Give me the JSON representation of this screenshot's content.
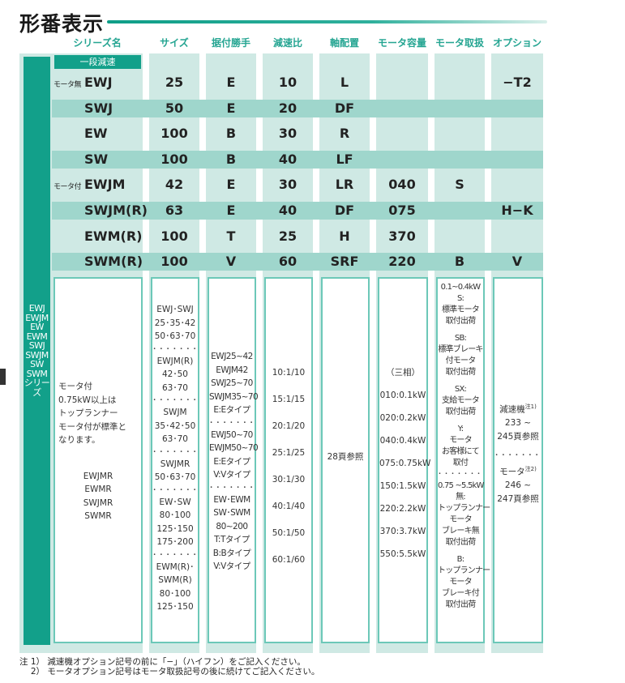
{
  "title": "形番表示",
  "headers": [
    "シリーズ名",
    "サイズ",
    "据付勝手",
    "減速比",
    "軸配置",
    "モータ容量",
    "モータ取扱",
    "オプション"
  ],
  "stage_badge": "一段減速",
  "side_label": [
    "EWJ",
    "EWJM",
    "EW",
    "EWM",
    "SWJ",
    "SWJM",
    "SW",
    "SWM",
    "シリーズ"
  ],
  "rows": [
    {
      "prefix": "モータ無",
      "series": "EWJ",
      "size": "25",
      "mount": "E",
      "ratio": "10",
      "axis": "L",
      "motor": "",
      "handling": "",
      "option": "−T2"
    },
    {
      "prefix": "",
      "series": "SWJ",
      "size": "50",
      "mount": "E",
      "ratio": "20",
      "axis": "DF",
      "motor": "",
      "handling": "",
      "option": ""
    },
    {
      "prefix": "",
      "series": "EW",
      "size": "100",
      "mount": "B",
      "ratio": "30",
      "axis": "R",
      "motor": "",
      "handling": "",
      "option": ""
    },
    {
      "prefix": "",
      "series": "SW",
      "size": "100",
      "mount": "B",
      "ratio": "40",
      "axis": "LF",
      "motor": "",
      "handling": "",
      "option": ""
    },
    {
      "prefix": "モータ付",
      "series": "EWJM",
      "size": "42",
      "mount": "E",
      "ratio": "30",
      "axis": "LR",
      "motor": "040",
      "handling": "S",
      "option": ""
    },
    {
      "prefix": "",
      "series": "SWJM(R)",
      "size": "63",
      "mount": "E",
      "ratio": "40",
      "axis": "DF",
      "motor": "075",
      "handling": "",
      "option": "H−K"
    },
    {
      "prefix": "",
      "series": "EWM(R)",
      "size": "100",
      "mount": "T",
      "ratio": "25",
      "axis": "H",
      "motor": "370",
      "handling": "",
      "option": ""
    },
    {
      "prefix": "",
      "series": "SWM(R)",
      "size": "100",
      "mount": "V",
      "ratio": "60",
      "axis": "SRF",
      "motor": "220",
      "handling": "B",
      "option": "V"
    }
  ],
  "details": {
    "series": {
      "note": [
        "モータ付",
        "0.75kW以上は",
        "トップランナー",
        "モータ付が標準と",
        "なります。"
      ],
      "models": [
        "EWJMR",
        "EWMR",
        "SWJMR",
        "SWMR"
      ]
    },
    "size": [
      "EWJ･SWJ",
      "25･35･42",
      "50･63･70",
      "---",
      "EWJM(R)",
      "42･50",
      "63･70",
      "---",
      "SWJM",
      "35･42･50",
      "63･70",
      "---",
      "SWJMR",
      "50･63･70",
      "---",
      "EW･SW",
      "80･100",
      "125･150",
      "175･200",
      "---",
      "EWM(R)･",
      "SWM(R)",
      "80･100",
      "125･150"
    ],
    "mount": [
      "EWJ25~42",
      "EWJM42",
      "SWJ25~70",
      "SWJM35~70",
      "E:Eタイプ",
      "---",
      "EWJ50~70",
      "EWJM50~70",
      "E:Eタイプ",
      "V:Vタイプ",
      "---",
      "EW･EWM",
      "SW･SWM",
      "80~200",
      "T:Tタイプ",
      "B:Bタイプ",
      "V:Vタイプ"
    ],
    "ratio": [
      "10:1/10",
      "15:1/15",
      "20:1/20",
      "25:1/25",
      "30:1/30",
      "40:1/40",
      "50:1/50",
      "60:1/60"
    ],
    "axis": "28頁参照",
    "motor": [
      "（三相）",
      "010:0.1kW",
      "020:0.2kW",
      "040:0.4kW",
      "075:0.75kW",
      "150:1.5kW",
      "220:2.2kW",
      "370:3.7kW",
      "550:5.5kW"
    ],
    "handling": [
      "0.1~0.4kW",
      "S:",
      "標準モータ",
      "取付出荷",
      "",
      "SB:",
      "標準ブレーキ",
      "付モータ",
      "取付出荷",
      "",
      "SX:",
      "支給モータ",
      "取付出荷",
      "",
      "Y:",
      "モータ",
      "お客様にて",
      "取付",
      "---",
      "0.75 ~5.5kW",
      "無:",
      "トップランナー",
      "モータ",
      "ブレーキ無",
      "取付出荷",
      "",
      "B:",
      "トップランナー",
      "モータ",
      "ブレーキ付",
      "取付出荷"
    ],
    "option": {
      "reducer_label": "減速機",
      "reducer_note": "注1)",
      "reducer_pages": [
        "233 ~",
        "245頁参照"
      ],
      "motor_label": "モータ",
      "motor_note": "注2)",
      "motor_pages": [
        "246 ~",
        "247頁参照"
      ]
    }
  },
  "notes": [
    "注 1） 減速機オプション記号の前に「−」（ハイフン）をご記入ください。",
    "　 2） モータオプション記号はモータ取扱記号の後に続けてご記入ください。"
  ],
  "colors": {
    "accent": "#12a08a",
    "header_text": "#25a592",
    "panel": "#cfe9e4",
    "stripe": "#9fd6cc",
    "box_border": "#6cc8b8"
  }
}
